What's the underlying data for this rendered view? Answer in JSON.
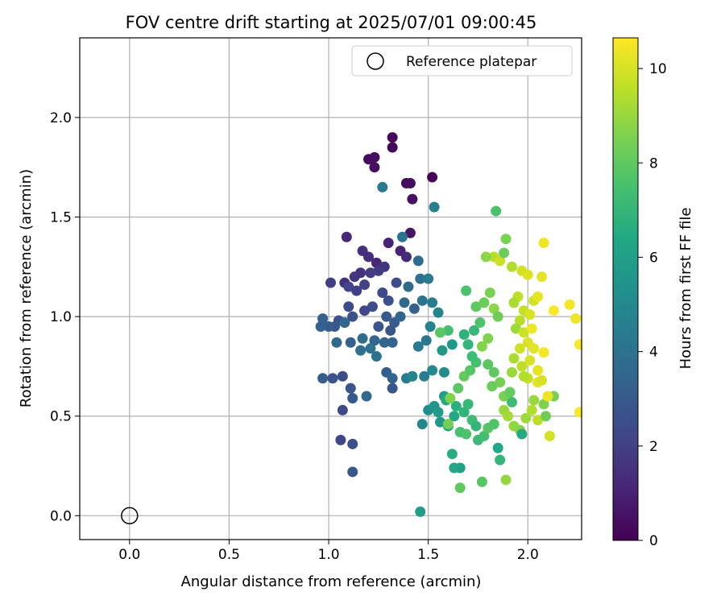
{
  "chart_data": {
    "type": "scatter",
    "title": "FOV centre drift starting at 2025/07/01 09:00:45",
    "xlabel": "Angular distance from reference (arcmin)",
    "ylabel": "Rotation from reference (arcmin)",
    "xlim": [
      -0.25,
      2.27
    ],
    "ylim": [
      -0.12,
      2.4
    ],
    "xticks": [
      "0.0",
      "0.5",
      "1.0",
      "1.5",
      "2.0"
    ],
    "yticks": [
      "0.0",
      "0.5",
      "1.0",
      "1.5",
      "2.0"
    ],
    "grid": true,
    "legend": {
      "placement": "top-right",
      "entries": [
        "Reference platepar"
      ]
    },
    "reference_point": {
      "x": 0.0,
      "y": 0.0
    },
    "colorbar": {
      "label": "Hours from first FF file",
      "range": [
        0,
        10.65
      ],
      "ticks": [
        "0",
        "2",
        "4",
        "6",
        "8",
        "10"
      ],
      "colormap": "viridis"
    },
    "points": [
      [
        1.52,
        1.7,
        0.15
      ],
      [
        1.32,
        1.9,
        0.2
      ],
      [
        1.32,
        1.85,
        0.25
      ],
      [
        1.2,
        1.79,
        0.35
      ],
      [
        1.23,
        1.8,
        0.4
      ],
      [
        1.23,
        1.75,
        0.45
      ],
      [
        1.39,
        1.67,
        0.3
      ],
      [
        1.41,
        1.67,
        0.35
      ],
      [
        1.42,
        1.59,
        0.5
      ],
      [
        1.41,
        1.42,
        0.6
      ],
      [
        1.09,
        1.4,
        1.2
      ],
      [
        1.3,
        1.37,
        1.0
      ],
      [
        1.36,
        1.33,
        1.1
      ],
      [
        1.39,
        1.3,
        1.3
      ],
      [
        1.17,
        1.33,
        1.5
      ],
      [
        1.2,
        1.3,
        1.4
      ],
      [
        1.24,
        1.27,
        1.2
      ],
      [
        1.28,
        1.25,
        1.6
      ],
      [
        1.13,
        1.2,
        1.7
      ],
      [
        1.16,
        1.22,
        1.6
      ],
      [
        1.08,
        1.17,
        1.5
      ],
      [
        1.01,
        1.17,
        1.9
      ],
      [
        1.25,
        1.23,
        1.8
      ],
      [
        1.21,
        1.22,
        1.9
      ],
      [
        1.18,
        1.16,
        2.1
      ],
      [
        1.1,
        1.15,
        2.2
      ],
      [
        1.14,
        1.13,
        2.0
      ],
      [
        1.27,
        1.12,
        2.3
      ],
      [
        1.34,
        1.17,
        2.4
      ],
      [
        1.3,
        1.08,
        2.6
      ],
      [
        1.22,
        1.05,
        2.5
      ],
      [
        1.18,
        1.03,
        2.2
      ],
      [
        1.1,
        1.05,
        2.4
      ],
      [
        1.12,
        1.0,
        2.6
      ],
      [
        1.05,
        0.98,
        2.7
      ],
      [
        1.03,
        0.95,
        2.9
      ],
      [
        1.08,
        0.97,
        3.0
      ],
      [
        1.0,
        0.95,
        3.1
      ],
      [
        0.96,
        0.95,
        3.3
      ],
      [
        0.97,
        0.99,
        3.2
      ],
      [
        1.25,
        0.95,
        2.8
      ],
      [
        1.29,
        1.0,
        3.0
      ],
      [
        1.33,
        0.97,
        3.1
      ],
      [
        1.31,
        0.93,
        2.9
      ],
      [
        1.36,
        1.0,
        3.4
      ],
      [
        1.38,
        1.07,
        3.6
      ],
      [
        1.43,
        1.04,
        3.3
      ],
      [
        1.46,
        1.19,
        3.9
      ],
      [
        1.47,
        1.08,
        4.1
      ],
      [
        1.4,
        1.15,
        3.7
      ],
      [
        1.5,
        1.19,
        4.4
      ],
      [
        1.53,
        1.55,
        4.6
      ],
      [
        1.27,
        1.65,
        4.3
      ],
      [
        1.37,
        1.4,
        4.1
      ],
      [
        1.45,
        1.28,
        3.8
      ],
      [
        1.52,
        1.07,
        4.5
      ],
      [
        1.55,
        1.02,
        4.8
      ],
      [
        1.49,
        0.88,
        4.2
      ],
      [
        1.51,
        0.95,
        4.7
      ],
      [
        1.45,
        0.85,
        4.3
      ],
      [
        1.28,
        0.87,
        3.6
      ],
      [
        1.32,
        0.87,
        3.4
      ],
      [
        1.23,
        0.88,
        3.5
      ],
      [
        1.17,
        0.89,
        3.8
      ],
      [
        1.11,
        0.87,
        3.3
      ],
      [
        1.16,
        0.83,
        3.9
      ],
      [
        1.21,
        0.84,
        4.0
      ],
      [
        1.24,
        0.8,
        4.1
      ],
      [
        1.04,
        0.87,
        3.7
      ],
      [
        1.08,
        0.97,
        3.5
      ],
      [
        1.02,
        0.69,
        2.7
      ],
      [
        0.97,
        0.69,
        3.1
      ],
      [
        1.07,
        0.7,
        2.5
      ],
      [
        1.11,
        0.64,
        2.8
      ],
      [
        1.12,
        0.59,
        3.0
      ],
      [
        1.07,
        0.53,
        2.4
      ],
      [
        1.19,
        0.6,
        3.6
      ],
      [
        1.29,
        0.72,
        3.2
      ],
      [
        1.32,
        0.69,
        3.4
      ],
      [
        1.32,
        0.64,
        2.9
      ],
      [
        1.06,
        0.38,
        2.2
      ],
      [
        1.12,
        0.36,
        2.6
      ],
      [
        1.12,
        0.22,
        2.9
      ],
      [
        1.39,
        0.69,
        4.4
      ],
      [
        1.42,
        0.7,
        4.8
      ],
      [
        1.48,
        0.7,
        4.5
      ],
      [
        1.52,
        0.73,
        5.0
      ],
      [
        1.58,
        0.72,
        5.2
      ],
      [
        1.57,
        0.83,
        5.6
      ],
      [
        1.62,
        0.86,
        5.7
      ],
      [
        1.47,
        0.46,
        4.9
      ],
      [
        1.5,
        0.53,
        5.2
      ],
      [
        1.53,
        0.55,
        5.5
      ],
      [
        1.55,
        0.52,
        5.8
      ],
      [
        1.56,
        0.47,
        5.6
      ],
      [
        1.58,
        0.6,
        6.0
      ],
      [
        1.6,
        0.45,
        6.2
      ],
      [
        1.63,
        0.5,
        6.4
      ],
      [
        1.62,
        0.31,
        6.6
      ],
      [
        1.66,
        0.24,
        6.1
      ],
      [
        1.63,
        0.24,
        6.3
      ],
      [
        1.46,
        0.02,
        5.9
      ],
      [
        1.59,
        0.58,
        6.5
      ],
      [
        1.64,
        0.55,
        6.7
      ],
      [
        1.68,
        0.52,
        6.9
      ],
      [
        1.7,
        0.56,
        7.1
      ],
      [
        1.72,
        0.48,
        7.3
      ],
      [
        1.66,
        0.42,
        7.5
      ],
      [
        1.69,
        0.41,
        7.6
      ],
      [
        1.74,
        0.45,
        7.0
      ],
      [
        1.75,
        0.38,
        7.2
      ],
      [
        1.78,
        0.4,
        7.4
      ],
      [
        1.8,
        0.44,
        7.8
      ],
      [
        1.83,
        0.46,
        7.7
      ],
      [
        1.85,
        0.34,
        6.4
      ],
      [
        1.86,
        0.28,
        7.0
      ],
      [
        1.77,
        0.17,
        7.8
      ],
      [
        1.66,
        0.14,
        8.0
      ],
      [
        1.6,
        0.46,
        8.4
      ],
      [
        1.61,
        0.59,
        8.6
      ],
      [
        1.65,
        0.64,
        7.9
      ],
      [
        1.68,
        0.7,
        8.1
      ],
      [
        1.71,
        0.73,
        7.8
      ],
      [
        1.74,
        0.77,
        7.5
      ],
      [
        1.72,
        0.8,
        7.3
      ],
      [
        1.7,
        0.86,
        7.0
      ],
      [
        1.68,
        0.91,
        6.8
      ],
      [
        1.73,
        0.93,
        7.1
      ],
      [
        1.76,
        0.97,
        7.7
      ],
      [
        1.74,
        1.05,
        8.0
      ],
      [
        1.69,
        1.13,
        7.6
      ],
      [
        1.6,
        0.93,
        7.4
      ],
      [
        1.56,
        0.92,
        7.9
      ],
      [
        1.78,
        1.07,
        8.2
      ],
      [
        1.81,
        1.12,
        8.5
      ],
      [
        1.83,
        1.04,
        8.8
      ],
      [
        1.85,
        1.0,
        8.3
      ],
      [
        1.8,
        0.89,
        8.6
      ],
      [
        1.77,
        0.85,
        8.7
      ],
      [
        1.8,
        0.76,
        7.9
      ],
      [
        1.83,
        0.72,
        8.0
      ],
      [
        1.86,
        0.67,
        8.4
      ],
      [
        1.82,
        0.65,
        8.2
      ],
      [
        1.88,
        0.6,
        8.5
      ],
      [
        1.91,
        0.62,
        8.1
      ],
      [
        1.92,
        0.57,
        7.3
      ],
      [
        1.88,
        0.53,
        9.0
      ],
      [
        1.9,
        0.5,
        9.2
      ],
      [
        1.93,
        0.45,
        8.9
      ],
      [
        1.96,
        0.43,
        8.7
      ],
      [
        1.97,
        0.41,
        6.5
      ],
      [
        1.99,
        0.49,
        9.1
      ],
      [
        2.02,
        0.53,
        9.4
      ],
      [
        2.05,
        0.48,
        9.6
      ],
      [
        2.03,
        0.58,
        9.0
      ],
      [
        2.08,
        0.56,
        8.6
      ],
      [
        2.09,
        0.5,
        8.3
      ],
      [
        2.11,
        0.4,
        9.9
      ],
      [
        2.13,
        0.6,
        8.4
      ],
      [
        2.1,
        0.6,
        10.4
      ],
      [
        1.89,
        0.18,
        8.9
      ],
      [
        1.83,
        1.3,
        9.5
      ],
      [
        1.86,
        1.28,
        9.8
      ],
      [
        1.79,
        1.3,
        8.8
      ],
      [
        1.84,
        1.53,
        7.6
      ],
      [
        1.89,
        1.39,
        8.5
      ],
      [
        1.88,
        1.32,
        8.2
      ],
      [
        1.92,
        1.25,
        9.4
      ],
      [
        1.97,
        1.23,
        9.9
      ],
      [
        2.0,
        1.21,
        10.1
      ],
      [
        2.08,
        1.37,
        10.4
      ],
      [
        2.07,
        1.2,
        10.2
      ],
      [
        1.95,
        1.1,
        9.6
      ],
      [
        1.93,
        1.07,
        9.3
      ],
      [
        1.98,
        1.03,
        9.7
      ],
      [
        2.03,
        1.08,
        9.9
      ],
      [
        2.05,
        1.1,
        10.3
      ],
      [
        2.01,
        1.01,
        10.0
      ],
      [
        1.96,
        0.98,
        9.5
      ],
      [
        1.94,
        0.94,
        9.1
      ],
      [
        1.98,
        0.92,
        9.8
      ],
      [
        2.02,
        0.94,
        10.4
      ],
      [
        2.0,
        0.87,
        10.1
      ],
      [
        1.96,
        0.84,
        9.9
      ],
      [
        2.03,
        0.84,
        10.2
      ],
      [
        1.93,
        0.79,
        9.3
      ],
      [
        1.97,
        0.75,
        9.6
      ],
      [
        2.01,
        0.78,
        10.0
      ],
      [
        2.05,
        0.73,
        10.3
      ],
      [
        2.08,
        0.82,
        10.5
      ],
      [
        2.13,
        1.03,
        10.6
      ],
      [
        2.21,
        1.06,
        10.5
      ],
      [
        2.24,
        0.99,
        10.4
      ],
      [
        2.26,
        0.86,
        10.6
      ],
      [
        2.26,
        0.52,
        10.6
      ],
      [
        2.05,
        0.67,
        10.2
      ],
      [
        2.07,
        0.68,
        10.0
      ],
      [
        2.0,
        0.69,
        9.7
      ],
      [
        1.98,
        0.7,
        9.4
      ],
      [
        1.92,
        0.72,
        9.0
      ]
    ]
  }
}
